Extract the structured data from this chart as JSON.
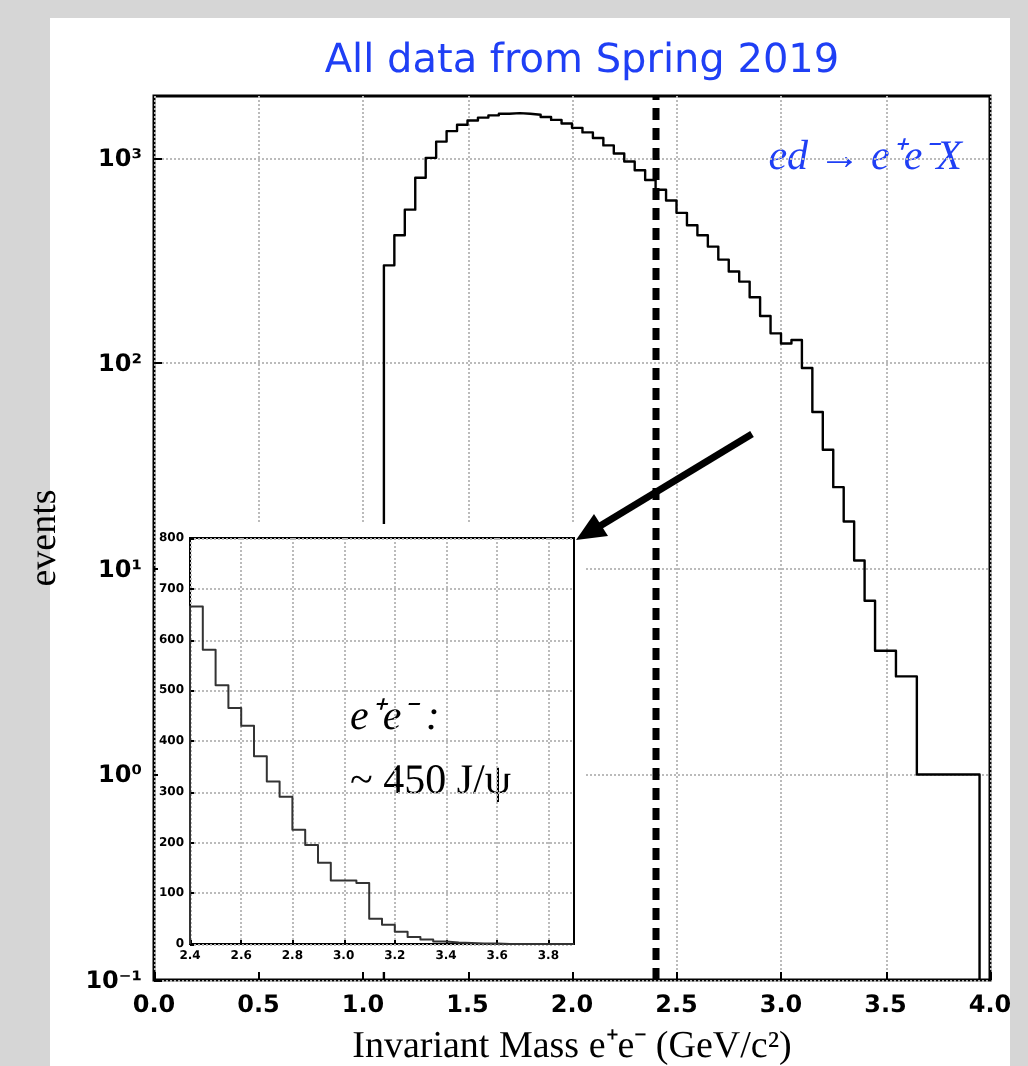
{
  "chart_data": [
    {
      "type": "histogram",
      "title": "All data from Spring 2019",
      "xlabel": "Invariant Mass e⁺e⁻ (GeV/c²)",
      "ylabel": "events",
      "annotations": [
        "ed → e⁺e⁻X"
      ],
      "bins": [
        1.1,
        1.15,
        1.2,
        1.25,
        1.3,
        1.35,
        1.4,
        1.45,
        1.5,
        1.55,
        1.6,
        1.65,
        1.7,
        1.75,
        1.8,
        1.85,
        1.9,
        1.95,
        2.0,
        2.05,
        2.1,
        2.15,
        2.2,
        2.25,
        2.3,
        2.35,
        2.4,
        2.45,
        2.5,
        2.55,
        2.6,
        2.65,
        2.7,
        2.75,
        2.8,
        2.85,
        2.9,
        2.95,
        3.0,
        3.05,
        3.1,
        3.15,
        3.2,
        3.25,
        3.3,
        3.35,
        3.4,
        3.45,
        3.5,
        3.55,
        3.6,
        3.65,
        3.7,
        3.75,
        3.8,
        3.85,
        3.9,
        3.95
      ],
      "values": [
        300,
        420,
        560,
        800,
        1000,
        1200,
        1350,
        1450,
        1520,
        1570,
        1610,
        1640,
        1650,
        1640,
        1620,
        1580,
        1530,
        1470,
        1400,
        1330,
        1250,
        1150,
        1050,
        960,
        870,
        780,
        700,
        620,
        540,
        470,
        420,
        370,
        320,
        280,
        250,
        210,
        170,
        140,
        125,
        130,
        95,
        58,
        38,
        25,
        17,
        11,
        7,
        4,
        4,
        3,
        3,
        1,
        1,
        1,
        1,
        1,
        1
      ],
      "color": "#000000",
      "xlim": [
        0,
        4
      ],
      "xticks": [
        {
          "value": 0,
          "label": "0.0"
        },
        0.5,
        {
          "value": 1,
          "label": "1.0"
        },
        1.5,
        {
          "value": 2,
          "label": "2.0"
        },
        2.5,
        {
          "value": 3,
          "label": "3.0"
        },
        3.5,
        {
          "value": 4,
          "label": "4.0"
        }
      ],
      "ylim": [
        0.1,
        2000
      ],
      "yticks": [
        {
          "value": 0.1,
          "label": "10⁻¹"
        },
        {
          "value": 1,
          "label": "10⁰"
        },
        {
          "value": 10,
          "label": "10¹"
        },
        {
          "value": 100,
          "label": "10²"
        },
        {
          "value": 1000,
          "label": "10³"
        }
      ],
      "log": true,
      "grid": true,
      "ref_lines": [
        {
          "axis": "x",
          "value": 2.4,
          "color": "#000000",
          "line_style": "dashed"
        }
      ]
    },
    {
      "type": "histogram",
      "annotations": [
        "e⁺e⁻ :",
        "~ 450 J/ψ"
      ],
      "bins": [
        2.4,
        2.45,
        2.5,
        2.55,
        2.6,
        2.65,
        2.7,
        2.75,
        2.8,
        2.85,
        2.9,
        2.95,
        3.0,
        3.05,
        3.1,
        3.15,
        3.2,
        3.25,
        3.3,
        3.35,
        3.4,
        3.45,
        3.5,
        3.55,
        3.6,
        3.65,
        3.7,
        3.75,
        3.8,
        3.85,
        3.9
      ],
      "values": [
        665,
        580,
        510,
        465,
        430,
        370,
        320,
        290,
        225,
        195,
        160,
        125,
        125,
        120,
        50,
        38,
        24,
        14,
        9,
        5,
        3,
        2,
        1,
        1,
        0,
        0,
        0,
        0,
        0,
        0
      ],
      "color": "#333333",
      "xlim": [
        2.4,
        3.9
      ],
      "xticks": [
        2.4,
        2.6,
        2.8,
        {
          "value": 3,
          "label": "3.0"
        },
        3.2,
        3.4,
        3.6,
        3.8
      ],
      "ylim": [
        0,
        800
      ],
      "yticks": [
        0,
        100,
        200,
        300,
        400,
        500,
        600,
        700,
        800
      ],
      "grid": true
    }
  ]
}
